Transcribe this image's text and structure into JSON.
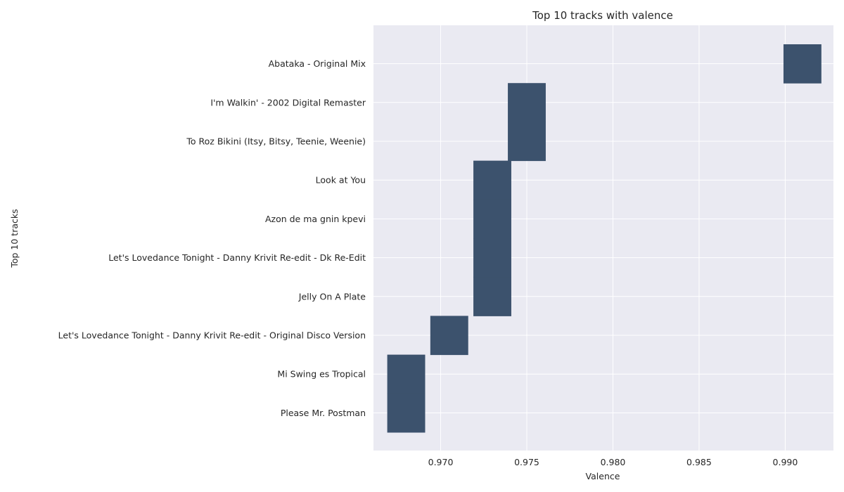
{
  "chart_data": {
    "type": "heatmap",
    "title": "Top 10 tracks with valence",
    "xlabel": "Valence",
    "ylabel": "Top 10 tracks",
    "xlim": [
      0.9661,
      0.9928
    ],
    "x_ticks": [
      0.97,
      0.975,
      0.98,
      0.985,
      0.99
    ],
    "x_tick_labels": [
      "0.970",
      "0.975",
      "0.980",
      "0.985",
      "0.990"
    ],
    "bin_width": 0.0022,
    "grid": true,
    "categories": [
      "Abataka - Original Mix",
      "I'm Walkin' - 2002 Digital Remaster",
      "To Roz Bikini (Itsy, Bitsy, Teenie, Weenie)",
      "Look at You",
      "Azon de ma gnin kpevi",
      "Let's Lovedance Tonight - Danny Krivit Re-edit - Dk Re-Edit",
      "Jelly On A Plate",
      "Let's Lovedance Tonight - Danny Krivit Re-edit - Original Disco Version",
      "Mi Swing es Tropical",
      "Please Mr. Postman"
    ],
    "values": [
      0.991,
      0.975,
      0.975,
      0.973,
      0.973,
      0.973,
      0.973,
      0.9705,
      0.968,
      0.968
    ],
    "colors": {
      "background": "#eaeaf2",
      "grid": "#ffffff",
      "cell": "#3c526d"
    }
  }
}
